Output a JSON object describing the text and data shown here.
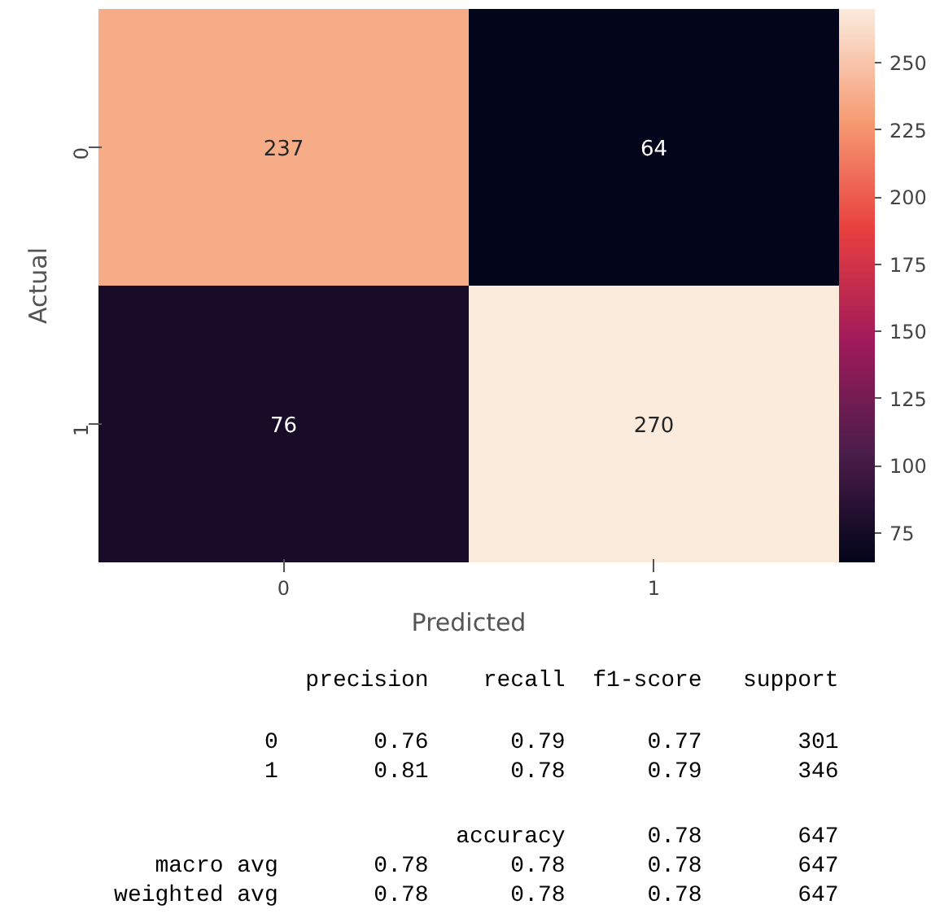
{
  "chart_data": {
    "type": "heatmap",
    "xlabel": "Predicted",
    "ylabel": "Actual",
    "categories": [
      "0",
      "1"
    ],
    "y_categories": [
      "0",
      "1"
    ],
    "cells": [
      [
        237,
        64
      ],
      [
        76,
        270
      ]
    ],
    "clim": [
      64,
      270
    ],
    "cticks": [
      75,
      100,
      125,
      150,
      175,
      200,
      225,
      250
    ],
    "data_labels": true,
    "annotations": [
      "precision recall f1-score support",
      "0 0.76 0.79 0.77 301",
      "1 0.81 0.78 0.79 346",
      "accuracy 0.78 647",
      "macro avg 0.78 0.78 0.78 647",
      "weighted avg 0.78 0.78 0.78 647"
    ]
  }
}
